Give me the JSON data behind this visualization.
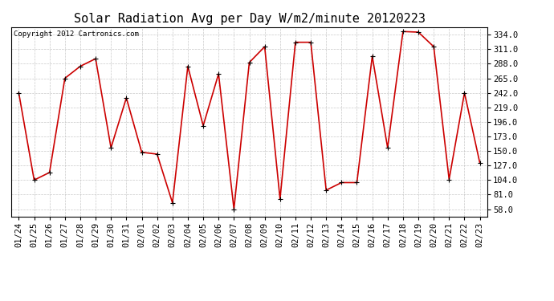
{
  "title": "Solar Radiation Avg per Day W/m2/minute 20120223",
  "copyright": "Copyright 2012 Cartronics.com",
  "dates": [
    "01/24",
    "01/25",
    "01/26",
    "01/27",
    "01/28",
    "01/29",
    "01/30",
    "01/31",
    "02/01",
    "02/02",
    "02/03",
    "02/04",
    "02/05",
    "02/06",
    "02/07",
    "02/08",
    "02/09",
    "02/10",
    "02/11",
    "02/12",
    "02/13",
    "02/14",
    "02/15",
    "02/16",
    "02/17",
    "02/18",
    "02/19",
    "02/20",
    "02/21",
    "02/22",
    "02/23"
  ],
  "values": [
    242,
    104,
    116,
    265,
    284,
    296,
    155,
    234,
    148,
    145,
    68,
    284,
    190,
    272,
    58,
    290,
    315,
    74,
    322,
    322,
    88,
    100,
    100,
    300,
    155,
    339,
    338,
    315,
    105,
    242,
    131
  ],
  "line_color": "#cc0000",
  "bg_color": "#ffffff",
  "grid_color": "#bbbbbb",
  "yticks": [
    58.0,
    81.0,
    104.0,
    127.0,
    150.0,
    173.0,
    196.0,
    219.0,
    242.0,
    265.0,
    288.0,
    311.0,
    334.0
  ],
  "ymin": 46,
  "ymax": 346,
  "title_fontsize": 11,
  "tick_fontsize": 7.5,
  "copyright_fontsize": 6.5
}
